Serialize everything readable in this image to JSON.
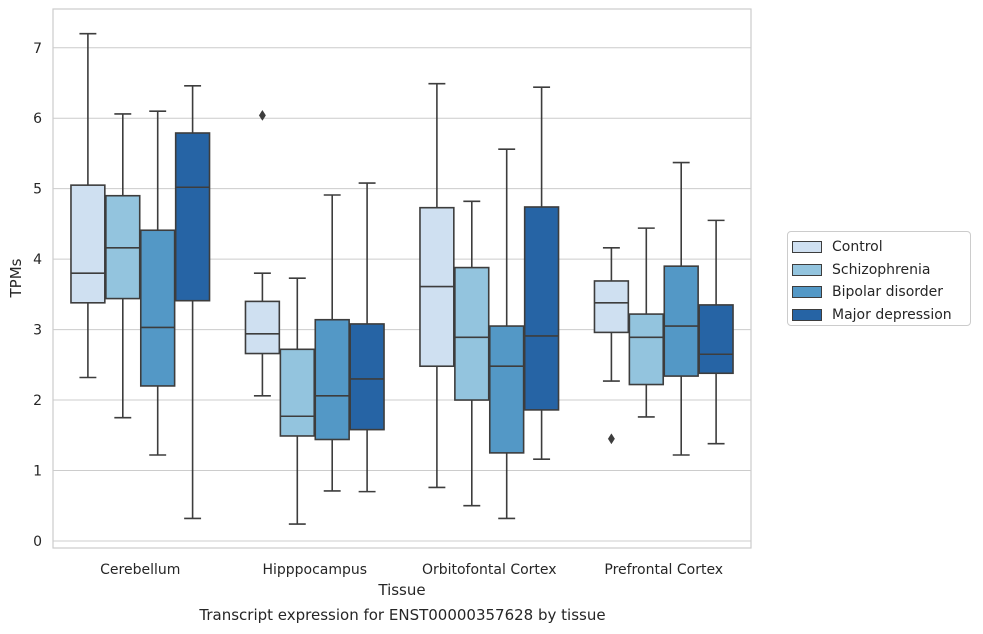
{
  "chart_data": {
    "type": "box",
    "title": "",
    "caption": "Transcript expression for ENST00000357628 by tissue",
    "xlabel": "Tissue",
    "ylabel": "TPMs",
    "ylim": [
      -0.1,
      7.55
    ],
    "yticks": [
      "0",
      "1",
      "2",
      "3",
      "4",
      "5",
      "6",
      "7"
    ],
    "grid": "horizontal",
    "legend_position": "right",
    "categories": [
      "Cerebellum",
      "Hipppocampus",
      "Orbitofontal Cortex",
      "Prefrontal Cortex"
    ],
    "series": [
      {
        "name": "Control",
        "color": "#cfe0f1",
        "boxes": [
          {
            "whislo": 2.32,
            "q1": 3.38,
            "med": 3.8,
            "q3": 5.05,
            "whishi": 7.2,
            "fliers": []
          },
          {
            "whislo": 2.06,
            "q1": 2.66,
            "med": 2.94,
            "q3": 3.4,
            "whishi": 3.8,
            "fliers": [
              6.04
            ]
          },
          {
            "whislo": 0.76,
            "q1": 2.48,
            "med": 3.61,
            "q3": 4.73,
            "whishi": 6.49,
            "fliers": []
          },
          {
            "whislo": 2.27,
            "q1": 2.96,
            "med": 3.38,
            "q3": 3.69,
            "whishi": 4.16,
            "fliers": [
              1.45
            ]
          }
        ]
      },
      {
        "name": "Schizophrenia",
        "color": "#93c4de",
        "boxes": [
          {
            "whislo": 1.75,
            "q1": 3.44,
            "med": 4.16,
            "q3": 4.9,
            "whishi": 6.06,
            "fliers": []
          },
          {
            "whislo": 0.24,
            "q1": 1.49,
            "med": 1.77,
            "q3": 2.72,
            "whishi": 3.73,
            "fliers": []
          },
          {
            "whislo": 0.5,
            "q1": 2.0,
            "med": 2.89,
            "q3": 3.88,
            "whishi": 4.82,
            "fliers": []
          },
          {
            "whislo": 1.76,
            "q1": 2.22,
            "med": 2.89,
            "q3": 3.22,
            "whishi": 4.44,
            "fliers": []
          }
        ]
      },
      {
        "name": "Bipolar disorder",
        "color": "#5398c6",
        "boxes": [
          {
            "whislo": 1.22,
            "q1": 2.2,
            "med": 3.03,
            "q3": 4.41,
            "whishi": 6.1,
            "fliers": []
          },
          {
            "whislo": 0.71,
            "q1": 1.44,
            "med": 2.06,
            "q3": 3.14,
            "whishi": 4.91,
            "fliers": []
          },
          {
            "whislo": 0.32,
            "q1": 1.25,
            "med": 2.48,
            "q3": 3.05,
            "whishi": 5.56,
            "fliers": []
          },
          {
            "whislo": 1.22,
            "q1": 2.34,
            "med": 3.05,
            "q3": 3.9,
            "whishi": 5.37,
            "fliers": []
          }
        ]
      },
      {
        "name": "Major depression",
        "color": "#2664a5",
        "boxes": [
          {
            "whislo": 0.32,
            "q1": 3.41,
            "med": 5.02,
            "q3": 5.79,
            "whishi": 6.46,
            "fliers": []
          },
          {
            "whislo": 0.7,
            "q1": 1.58,
            "med": 2.3,
            "q3": 3.08,
            "whishi": 5.08,
            "fliers": []
          },
          {
            "whislo": 1.16,
            "q1": 1.86,
            "med": 2.91,
            "q3": 4.74,
            "whishi": 6.44,
            "fliers": []
          },
          {
            "whislo": 1.38,
            "q1": 2.38,
            "med": 2.65,
            "q3": 3.35,
            "whishi": 4.55,
            "fliers": []
          }
        ]
      }
    ]
  }
}
